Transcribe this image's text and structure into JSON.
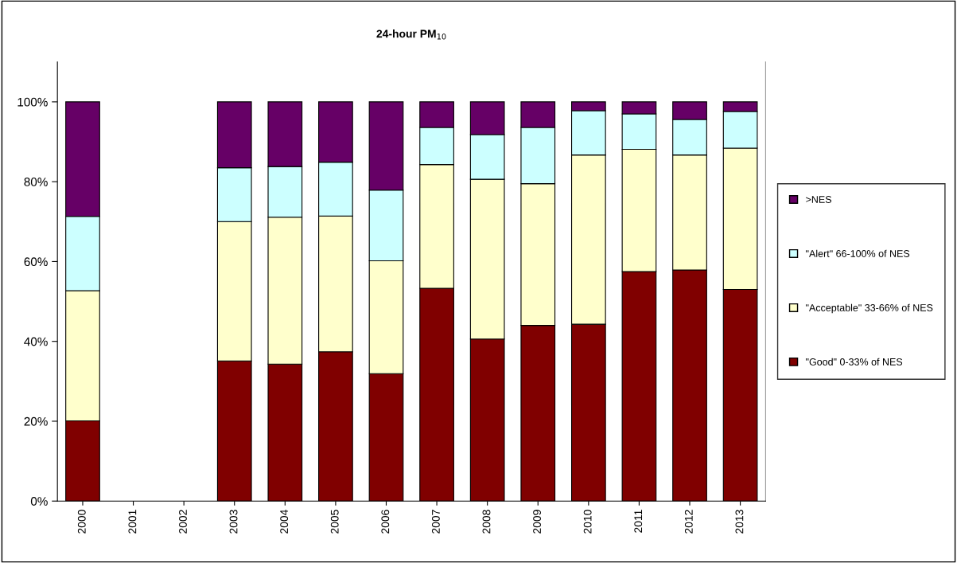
{
  "chart_data": {
    "type": "bar",
    "stacked": true,
    "title": "24-hour PM$_{10}$",
    "categories": [
      "2000",
      "2001",
      "2002",
      "2003",
      "2004",
      "2005",
      "2006",
      "2007",
      "2008",
      "2009",
      "2010",
      "2011",
      "2012",
      "2013"
    ],
    "series": [
      {
        "name": "\"Good\" 0-33% of NES",
        "color": "#800000",
        "values": [
          20.1,
          null,
          null,
          35.1,
          34.3,
          37.4,
          31.9,
          53.3,
          40.6,
          44.0,
          44.3,
          57.5,
          57.9,
          53.0
        ]
      },
      {
        "name": "\"Acceptable\" 33-66% of NES",
        "color": "#ffffcc",
        "values": [
          32.6,
          null,
          null,
          34.9,
          36.8,
          34.0,
          28.3,
          31.0,
          40.0,
          35.5,
          42.4,
          30.6,
          28.8,
          35.4
        ]
      },
      {
        "name": "\"Alert\" 66-100% of NES",
        "color": "#ccffff",
        "values": [
          18.6,
          null,
          null,
          13.5,
          12.7,
          13.5,
          17.7,
          9.3,
          11.2,
          14.1,
          11.1,
          8.9,
          8.9,
          9.2
        ]
      },
      {
        "name": ">NES",
        "color": "#660066",
        "values": [
          28.7,
          null,
          null,
          16.5,
          16.2,
          15.1,
          22.1,
          6.4,
          8.2,
          6.4,
          2.2,
          3.0,
          4.4,
          2.4
        ]
      }
    ],
    "ylim": [
      0,
      110
    ],
    "yticks": [
      {
        "value": 0,
        "label": "0%"
      },
      {
        "value": 20,
        "label": "20%"
      },
      {
        "value": 40,
        "label": "40%"
      },
      {
        "value": 60,
        "label": "60%"
      },
      {
        "value": 80,
        "label": "80%"
      },
      {
        "value": 100,
        "label": "100%"
      }
    ],
    "grid": false,
    "legend": "right"
  }
}
